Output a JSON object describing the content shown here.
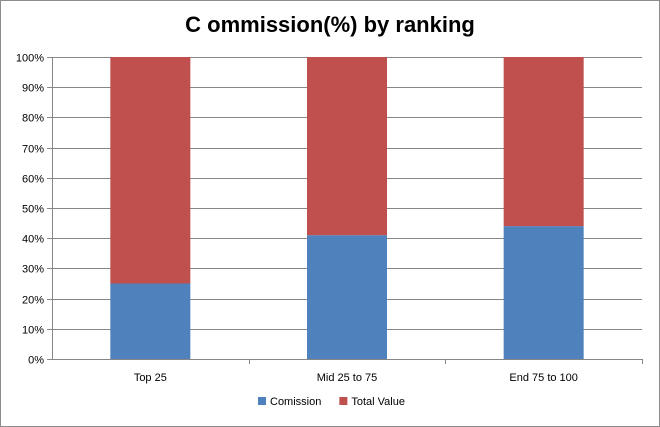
{
  "chart_data": {
    "type": "bar",
    "stacked": true,
    "stack_mode": "percent",
    "title": "C ommission(%) by ranking",
    "categories": [
      "Top 25",
      "Mid 25 to 75",
      "End 75 to 100"
    ],
    "series": [
      {
        "name": "Comission",
        "values": [
          25,
          41,
          44
        ],
        "color": "#4f81bd"
      },
      {
        "name": "Total Value",
        "values": [
          75,
          59,
          56
        ],
        "color": "#c0504d"
      }
    ],
    "y_ticks": [
      "0%",
      "10%",
      "20%",
      "30%",
      "40%",
      "50%",
      "60%",
      "70%",
      "80%",
      "90%",
      "100%"
    ],
    "ylim": [
      0,
      100
    ],
    "grid": true,
    "legend_position": "bottom",
    "colors": {
      "axis": "#868686",
      "grid": "#868686"
    }
  }
}
